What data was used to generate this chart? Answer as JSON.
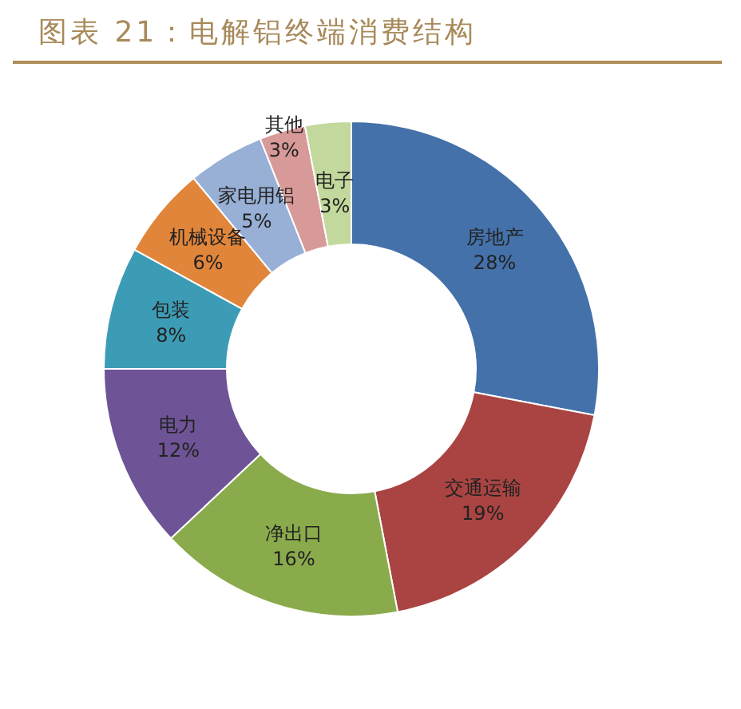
{
  "chart_data": {
    "type": "donut",
    "title": "图表 21：电解铝终端消费结构",
    "categories": [
      "房地产",
      "交通运输",
      "净出口",
      "电力",
      "包装",
      "机械设备",
      "家电用铝",
      "其他",
      "电子"
    ],
    "values": [
      28,
      19,
      16,
      12,
      8,
      6,
      5,
      3,
      3
    ],
    "value_labels": [
      "28%",
      "19%",
      "16%",
      "12%",
      "8%",
      "6%",
      "5%",
      "3%",
      "3%"
    ],
    "colors": [
      "#4471aa",
      "#a94442",
      "#8aab4c",
      "#6e5496",
      "#3d9cb5",
      "#e1853a",
      "#98b0d6",
      "#d89a98",
      "#c3d89c"
    ],
    "legend": false
  }
}
